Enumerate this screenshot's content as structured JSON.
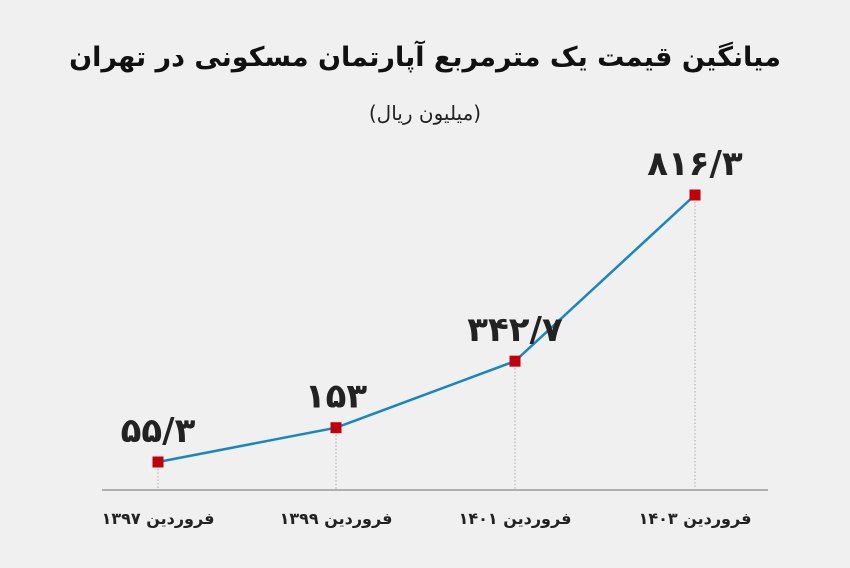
{
  "chart_data": {
    "type": "line",
    "title": "میانگین قیمت یک مترمربع آپارتمان مسکونی در تهران",
    "subtitle": "(میلیون ریال)",
    "categories": [
      "فروردین ۱۳۹۷",
      "فروردین ۱۳۹۹",
      "فروردین ۱۴۰۱",
      "فروردین ۱۴۰۳"
    ],
    "values": [
      55.3,
      153,
      342.7,
      816.3
    ],
    "value_labels": [
      "۵۵/۳",
      "۱۵۳",
      "۳۴۲/۷",
      "۸۱۶/۳"
    ],
    "ylim": [
      0,
      1000
    ],
    "grid": false,
    "legend": "none",
    "colors": {
      "line": "#1a86c0",
      "marker": "#c0000a",
      "axis": "#9a9a9a",
      "background": "#f0f0f0"
    }
  }
}
